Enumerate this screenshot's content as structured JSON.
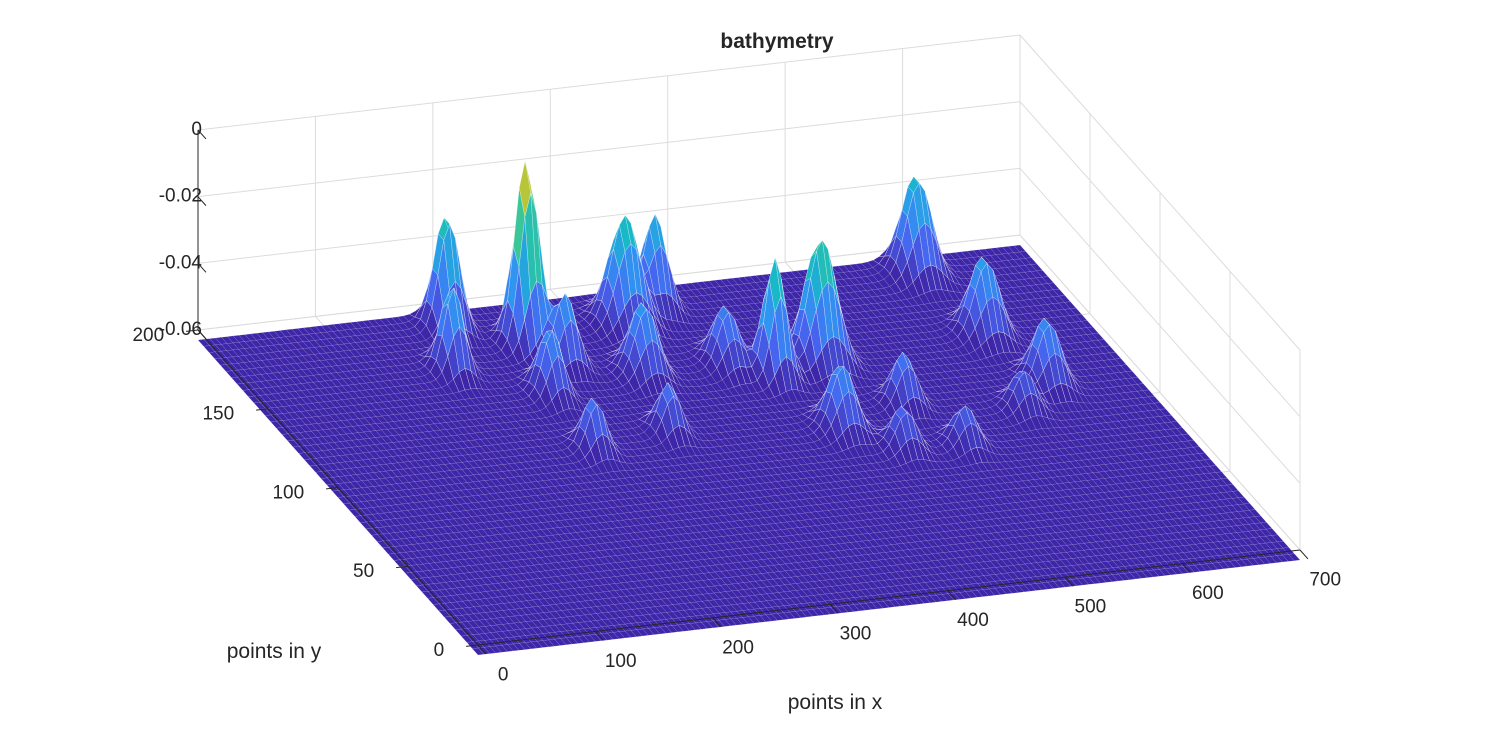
{
  "chart_data": {
    "type": "surface",
    "title": "bathymetry",
    "xlabel": "points in x",
    "ylabel": "points in y",
    "zlabel": "",
    "xlim": [
      0,
      700
    ],
    "ylim": [
      0,
      200
    ],
    "zlim": [
      -0.06,
      0
    ],
    "grid": true,
    "colormap": "parula",
    "colormap_stops": [
      "#3e26a8",
      "#4764ef",
      "#2f96f0",
      "#18b9c6",
      "#44c98c",
      "#adc53a",
      "#f5c630",
      "#f9fb14"
    ],
    "base_value": -0.063,
    "x_ticks": [
      {
        "value": 0,
        "label": "0"
      },
      {
        "value": 100,
        "label": "100"
      },
      {
        "value": 200,
        "label": "200"
      },
      {
        "value": 300,
        "label": "300"
      },
      {
        "value": 400,
        "label": "400"
      },
      {
        "value": 500,
        "label": "500"
      },
      {
        "value": 600,
        "label": "600"
      },
      {
        "value": 700,
        "label": "700"
      }
    ],
    "y_ticks": [
      {
        "value": 0,
        "label": "0"
      },
      {
        "value": 50,
        "label": "50"
      },
      {
        "value": 100,
        "label": "100"
      },
      {
        "value": 150,
        "label": "150"
      },
      {
        "value": 200,
        "label": "200"
      }
    ],
    "z_ticks": [
      {
        "value": -0.06,
        "label": "-0.06"
      },
      {
        "value": -0.04,
        "label": "-0.04"
      },
      {
        "value": -0.02,
        "label": "-0.02"
      },
      {
        "value": 0,
        "label": "0"
      }
    ],
    "bumps": [
      {
        "x": 250,
        "y": 175,
        "height": 0.056,
        "sx": 9,
        "sy": 5
      },
      {
        "x": 200,
        "y": 190,
        "height": 0.035,
        "sx": 9,
        "sy": 5
      },
      {
        "x": 175,
        "y": 165,
        "height": 0.026,
        "sx": 8,
        "sy": 5
      },
      {
        "x": 265,
        "y": 160,
        "height": 0.022,
        "sx": 9,
        "sy": 5
      },
      {
        "x": 235,
        "y": 145,
        "height": 0.02,
        "sx": 8,
        "sy": 6
      },
      {
        "x": 340,
        "y": 180,
        "height": 0.033,
        "sx": 12,
        "sy": 6
      },
      {
        "x": 375,
        "y": 188,
        "height": 0.028,
        "sx": 9,
        "sy": 5
      },
      {
        "x": 320,
        "y": 150,
        "height": 0.022,
        "sx": 10,
        "sy": 6
      },
      {
        "x": 390,
        "y": 150,
        "height": 0.018,
        "sx": 9,
        "sy": 6
      },
      {
        "x": 230,
        "y": 110,
        "height": 0.016,
        "sx": 8,
        "sy": 5
      },
      {
        "x": 300,
        "y": 115,
        "height": 0.015,
        "sx": 8,
        "sy": 5
      },
      {
        "x": 420,
        "y": 140,
        "height": 0.036,
        "sx": 8,
        "sy": 5
      },
      {
        "x": 465,
        "y": 145,
        "height": 0.038,
        "sx": 12,
        "sy": 6
      },
      {
        "x": 435,
        "y": 105,
        "height": 0.02,
        "sx": 10,
        "sy": 6
      },
      {
        "x": 500,
        "y": 115,
        "height": 0.016,
        "sx": 9,
        "sy": 5
      },
      {
        "x": 470,
        "y": 90,
        "height": 0.013,
        "sx": 9,
        "sy": 5
      },
      {
        "x": 520,
        "y": 88,
        "height": 0.012,
        "sx": 9,
        "sy": 5
      },
      {
        "x": 600,
        "y": 190,
        "height": 0.03,
        "sx": 11,
        "sy": 6
      },
      {
        "x": 610,
        "y": 150,
        "height": 0.024,
        "sx": 11,
        "sy": 6
      },
      {
        "x": 625,
        "y": 118,
        "height": 0.02,
        "sx": 10,
        "sy": 6
      },
      {
        "x": 590,
        "y": 105,
        "height": 0.012,
        "sx": 9,
        "sy": 5
      }
    ]
  }
}
